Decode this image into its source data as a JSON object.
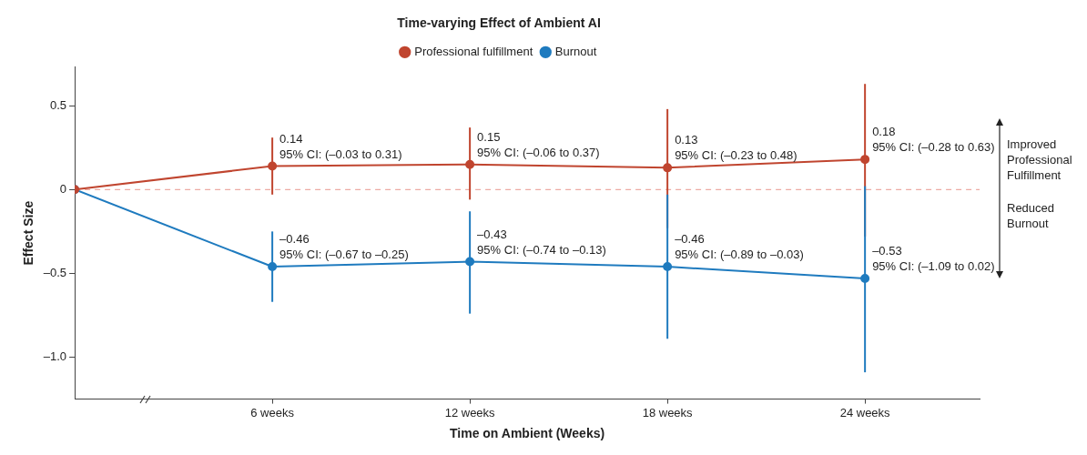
{
  "chart_data": {
    "type": "line",
    "title": "Time-varying Effect of Ambient AI",
    "xlabel": "Time on Ambient (Weeks)",
    "ylabel": "Effect Size",
    "categories": [
      null,
      "6 weeks",
      "12 weeks",
      "18 weeks",
      "24 weeks"
    ],
    "series": [
      {
        "name": "Professional fulfillment",
        "color": "#c0452f",
        "values": [
          0,
          0.14,
          0.15,
          0.13,
          0.18
        ],
        "errors": [
          null,
          [
            -0.03,
            0.31
          ],
          [
            -0.06,
            0.37
          ],
          [
            -0.23,
            0.48
          ],
          [
            -0.28,
            0.63
          ]
        ],
        "value_labels": [
          null,
          "0.14\n95% CI: (–0.03 to 0.31)",
          "0.15\n95% CI: (–0.06 to 0.37)",
          "0.13\n95% CI: (–0.23 to 0.48)",
          "0.18\n95% CI: (–0.28 to 0.63)"
        ]
      },
      {
        "name": "Burnout",
        "color": "#1f7bbf",
        "values": [
          0,
          -0.46,
          -0.43,
          -0.46,
          -0.53
        ],
        "errors": [
          null,
          [
            -0.67,
            -0.25
          ],
          [
            -0.74,
            -0.13
          ],
          [
            -0.89,
            -0.03
          ],
          [
            -1.09,
            0.02
          ]
        ],
        "value_labels": [
          null,
          "–0.46\n95% CI: (–0.67 to –0.25)",
          "–0.43\n95% CI: (–0.74 to –0.13)",
          "–0.46\n95% CI: (–0.89 to –0.03)",
          "–0.53\n95% CI: (–1.09 to 0.02)"
        ]
      }
    ],
    "ylim": [
      -1.25,
      0.73
    ],
    "yticks": [
      0.5,
      0,
      {
        "value": -0.5,
        "label": "–0.5"
      },
      {
        "value": -1.0,
        "label": "–1.0"
      }
    ],
    "ref_lines": [
      {
        "axis": "y",
        "value": 0,
        "color": "#e8958c",
        "line_style": "dashed"
      }
    ],
    "annotations": [
      "Improved\nProfessional\nFulfillment",
      "Reduced\nBurnout"
    ],
    "legend": "top",
    "grid": false,
    "marker": "circle",
    "line_style": "solid"
  }
}
